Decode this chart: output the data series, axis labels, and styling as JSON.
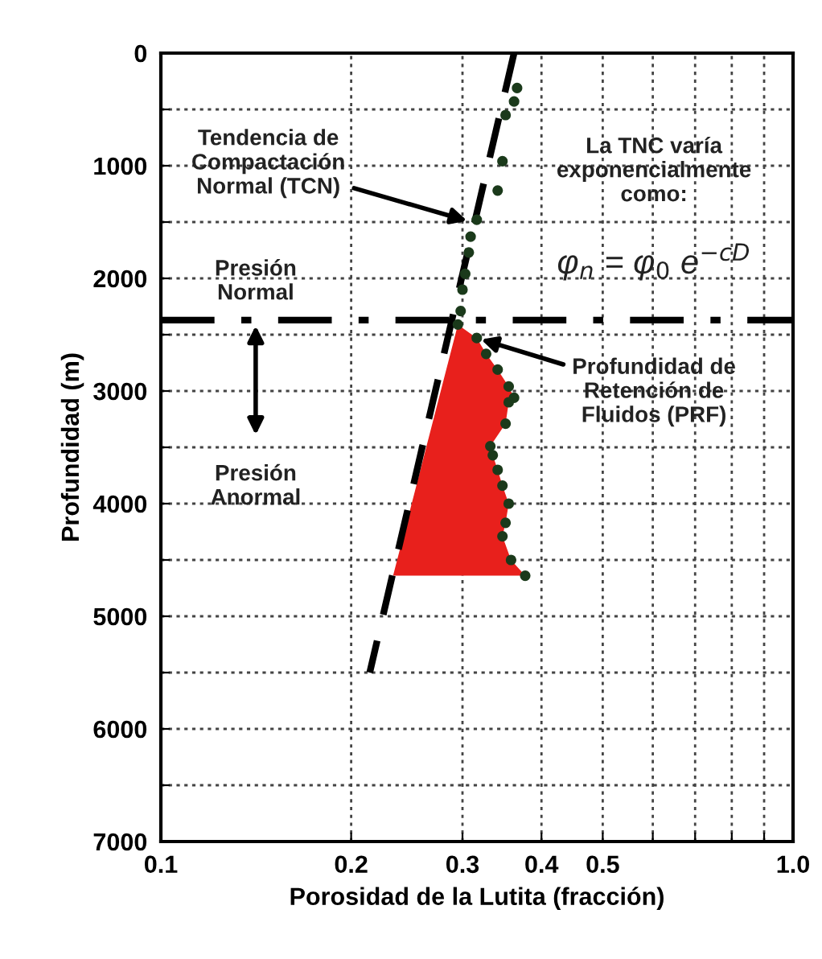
{
  "chart_data": {
    "type": "scatter",
    "xlabel": "Porosidad de la Lutita (fracción)",
    "ylabel": "Profundidad (m)",
    "log": "x",
    "xlim": [
      0.1,
      1.0
    ],
    "ylim": [
      7000,
      0
    ],
    "xticks": [
      0.1,
      0.2,
      0.3,
      0.4,
      0.5,
      {
        "value": 0.6,
        "label": null
      },
      {
        "value": 0.7,
        "label": null
      },
      {
        "value": 0.8,
        "label": null
      },
      {
        "value": 0.9,
        "label": null
      },
      {
        "value": 1.0,
        "label": "1.0"
      }
    ],
    "yticks": [
      0,
      {
        "value": 500,
        "label": null
      },
      1000,
      {
        "value": 1500,
        "label": null
      },
      2000,
      {
        "value": 2500,
        "label": null
      },
      3000,
      {
        "value": 3500,
        "label": null
      },
      4000,
      {
        "value": 4500,
        "label": null
      },
      5000,
      {
        "value": 5500,
        "label": null
      },
      6000,
      {
        "value": 6500,
        "label": null
      },
      7000
    ],
    "grid": true,
    "series": [
      {
        "type": "area",
        "color": "#e8201c",
        "x": [
          0.295,
          0.316,
          0.327,
          0.341,
          0.355,
          0.362,
          0.355,
          0.351,
          0.332,
          0.335,
          0.341,
          0.347,
          0.355,
          0.351,
          0.347,
          0.358,
          0.377,
          0.233,
          0.295
        ],
        "values": [
          2410,
          2530,
          2670,
          2810,
          2960,
          3060,
          3100,
          3290,
          3490,
          3570,
          3700,
          3840,
          4000,
          4170,
          4290,
          4500,
          4640,
          4640,
          2410
        ]
      },
      {
        "type": "line",
        "color": "#000000",
        "line_style": "dashed",
        "marker": "none",
        "x": [
          0.362,
          0.214
        ],
        "values": [
          0,
          5500
        ]
      },
      {
        "color": "#1b3a1b",
        "marker": "circle",
        "x": [
          0.366,
          0.362,
          0.351,
          0.347,
          0.341,
          0.316,
          0.309,
          0.307,
          0.303,
          0.3,
          0.298,
          0.295,
          0.316,
          0.327,
          0.341,
          0.355,
          0.362,
          0.355,
          0.351,
          0.332,
          0.335,
          0.341,
          0.347,
          0.355,
          0.351,
          0.347,
          0.358,
          0.377
        ],
        "values": [
          310,
          430,
          550,
          960,
          1220,
          1480,
          1630,
          1770,
          1960,
          2100,
          2290,
          2410,
          2530,
          2670,
          2810,
          2960,
          3060,
          3100,
          3290,
          3490,
          3570,
          3700,
          3840,
          4000,
          4170,
          4290,
          4500,
          4640
        ]
      }
    ],
    "ref_lines": [
      {
        "axis": "y",
        "value": 2370,
        "color": "#000000",
        "line_style": "dashdot"
      }
    ],
    "annotations": [
      {
        "text": "Tendencia de\nCompactación\nNormal (TCN)",
        "x": 0.31,
        "y": 1500
      },
      {
        "text": "Profundidad de\nRetención de\nFluidos (PRF)",
        "x": 0.316,
        "y": 2530
      },
      "La TNC varía\nexponencialmente\ncomo:",
      "φ$_{n}$ = φ$_{0}$ e$^{−cD}$",
      "Presión\nNormal",
      "Presión\nAnormal"
    ]
  }
}
